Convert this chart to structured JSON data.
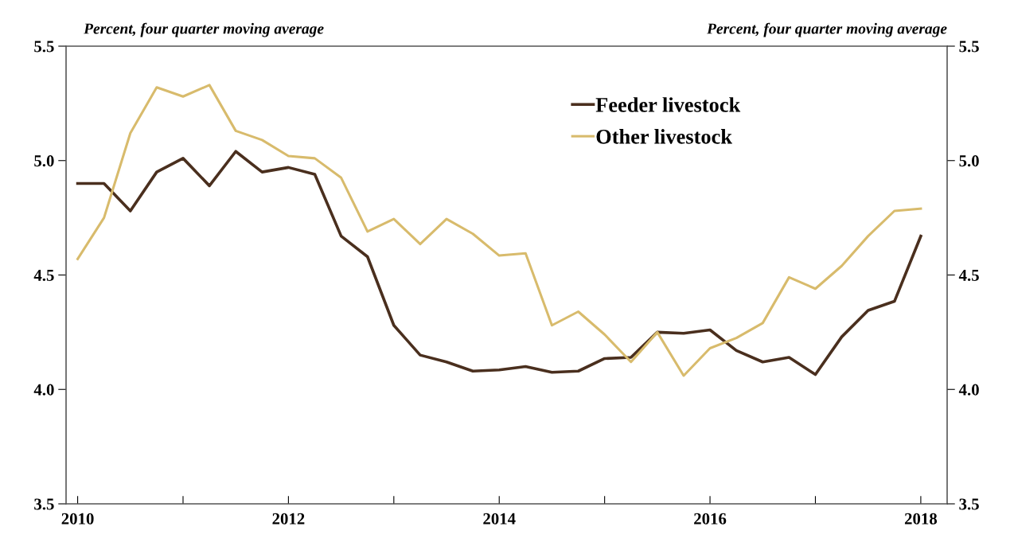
{
  "chart_data": {
    "type": "line",
    "ylabel": "Percent, four quarter moving average",
    "y2label": "Percent, four quarter moving average",
    "x": [
      2010.0,
      2010.25,
      2010.5,
      2010.75,
      2011.0,
      2011.25,
      2011.5,
      2011.75,
      2012.0,
      2012.25,
      2012.5,
      2012.75,
      2013.0,
      2013.25,
      2013.5,
      2013.75,
      2014.0,
      2014.25,
      2014.5,
      2014.75,
      2015.0,
      2015.25,
      2015.5,
      2015.75,
      2016.0,
      2016.25,
      2016.5,
      2016.75,
      2017.0,
      2017.25,
      2017.5,
      2017.75,
      2018.0
    ],
    "series": [
      {
        "name": "Feeder livestock",
        "color": "#4a2f1e",
        "values": [
          4.9,
          4.9,
          4.78,
          4.95,
          5.01,
          4.89,
          5.04,
          4.95,
          4.97,
          4.94,
          4.67,
          4.58,
          4.28,
          4.15,
          4.12,
          4.08,
          4.085,
          4.1,
          4.075,
          4.08,
          4.135,
          4.14,
          4.25,
          4.245,
          4.26,
          4.17,
          4.12,
          4.14,
          4.065,
          4.23,
          4.345,
          4.385,
          4.67
        ]
      },
      {
        "name": "Other livestock",
        "color": "#d8bb6c",
        "values": [
          4.57,
          4.75,
          5.12,
          5.32,
          5.28,
          5.33,
          5.13,
          5.09,
          5.02,
          5.01,
          4.925,
          4.69,
          4.745,
          4.635,
          4.745,
          4.68,
          4.585,
          4.595,
          4.28,
          4.34,
          4.24,
          4.12,
          4.25,
          4.06,
          4.18,
          4.225,
          4.29,
          4.49,
          4.44,
          4.54,
          4.67,
          4.78,
          4.79
        ]
      }
    ],
    "xlim": [
      2009.89,
      2018.25
    ],
    "xticks": [
      2010,
      {
        "value": 2011,
        "label": null
      },
      2012,
      {
        "value": 2013,
        "label": null
      },
      2014,
      {
        "value": 2015,
        "label": null
      },
      2016,
      {
        "value": 2017,
        "label": null
      },
      2018
    ],
    "ylim": [
      3.5,
      5.5
    ],
    "yticks": [
      3.5,
      {
        "value": 4.0,
        "label": "4.0"
      },
      4.5,
      {
        "value": 5.0,
        "label": "5.0"
      },
      5.5
    ],
    "y2lim": [
      3.5,
      5.5
    ],
    "y2ticks": [
      3.5,
      {
        "value": 4.0,
        "label": "4.0"
      },
      4.5,
      {
        "value": 5.0,
        "label": "5.0"
      },
      5.5
    ],
    "grid": false,
    "legend": "top",
    "marker": "none",
    "line_style": "solid"
  }
}
